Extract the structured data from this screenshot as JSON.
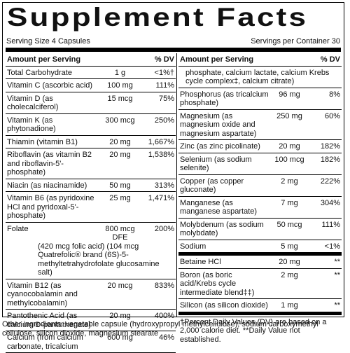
{
  "title": "Supplement Facts",
  "serving_size": "Serving Size 4 Capsules",
  "servings_per_container": "Servings per Container 30",
  "left_column": {
    "header": {
      "amount": "Amount per Serving",
      "dv": "% DV"
    },
    "rows": [
      {
        "name": "Total Carbohydrate",
        "amount": "1 g",
        "dv": "<1%†"
      },
      {
        "name": "Vitamin C (ascorbic acid)",
        "amount": "100 mg",
        "dv": "111%"
      },
      {
        "name": "Vitamin D (as cholecalciferol)",
        "amount": "15 mcg",
        "dv": "75%"
      },
      {
        "name": "Vitamin K (as phytonadione)",
        "amount": "300 mcg",
        "dv": "250%"
      },
      {
        "name": "Thiamin (vitamin B1)",
        "amount": "20 mg",
        "dv": "1,667%"
      },
      {
        "name": "Riboflavin (as vitamin B2 and riboflavin-5'-phosphate)",
        "amount": "20 mg",
        "dv": "1,538%"
      },
      {
        "name": "Niacin (as niacinamide)",
        "amount": "50 mg",
        "dv": "313%"
      },
      {
        "name": "Vitamin B6 (as pyridoxine HCl and pyridoxal-5'-phosphate)",
        "amount": "25 mg",
        "dv": "1,471%"
      },
      {
        "name": "Folate",
        "amount": "800 mcg DFE",
        "dv": "200%",
        "detail": "(420 mcg folic acid) (104 mcg Quatrefolic® brand (6S)-5-methyltetrahydrofolate glucosamine salt)"
      },
      {
        "name": "Vitamin B12 (as cyanocobalamin and methylcobalamin)",
        "amount": "20 mcg",
        "dv": "833%"
      },
      {
        "name": "Pantothenic Acid (as calcium D-pantothenate)",
        "amount": "20 mg",
        "dv": "400%"
      },
      {
        "name": "Calcium (from calcium carbonate, tricalcium",
        "amount": "600 mg",
        "dv": "46%"
      }
    ]
  },
  "right_column": {
    "header": {
      "amount": "Amount per Serving",
      "dv": "% DV"
    },
    "rows": [
      {
        "name": "phosphate, calcium lactate, calcium Krebs cycle complex‡, calcium citrate)"
      },
      {
        "name": "Phosphorus (as tricalcium phosphate)",
        "amount": "96 mg",
        "dv": "8%"
      },
      {
        "name": "Magnesium (as magnesium oxide and magnesium aspartate)",
        "amount": "250 mg",
        "dv": "60%"
      },
      {
        "name": "Zinc (as zinc picolinate)",
        "amount": "20 mg",
        "dv": "182%"
      },
      {
        "name": "Selenium (as sodium selenite)",
        "amount": "100 mcg",
        "dv": "182%"
      },
      {
        "name": "Copper (as copper gluconate)",
        "amount": "2 mg",
        "dv": "222%"
      },
      {
        "name": "Manganese (as manganese aspartate)",
        "amount": "7 mg",
        "dv": "304%"
      },
      {
        "name": "Molybdenum (as sodium molybdate)",
        "amount": "50 mcg",
        "dv": "111%"
      },
      {
        "name": "Sodium",
        "amount": "5 mg",
        "dv": "<1%"
      }
    ],
    "other_rows": [
      {
        "name": "Betaine HCl",
        "amount": "20 mg",
        "dv": "**"
      },
      {
        "name": "Boron (as boric acid/Krebs cycle intermediate blend‡‡)",
        "amount": "2 mg",
        "dv": "**"
      },
      {
        "name": "Silicon (as silicon dioxide)",
        "amount": "1 mg",
        "dv": "**"
      }
    ],
    "footnote": "†Percent Daily Values (DV) are based on a 2,000 calorie diet. **Daily Value not established."
  },
  "other_ingredients": "Other ingredients: vegetable capsule (hydroxypropyl methylcellulose), sodium carboxymethyl cellulose, silicon dioxide, magnesium stearate"
}
